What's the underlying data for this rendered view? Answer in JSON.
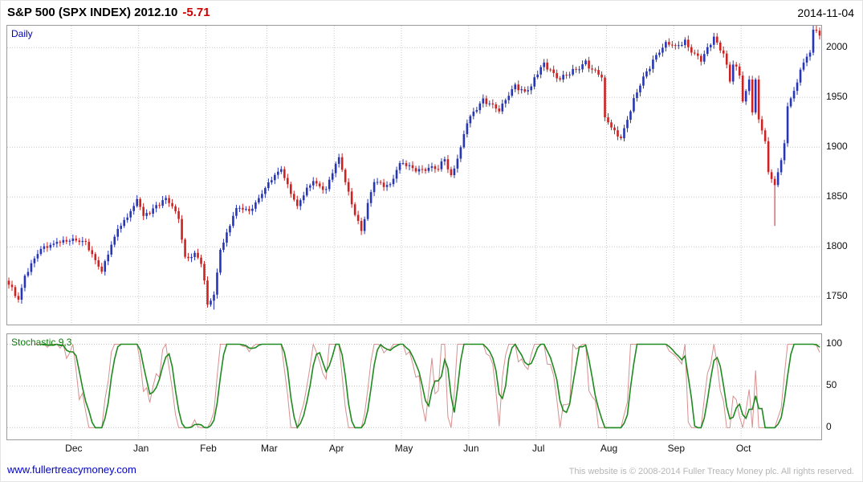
{
  "header": {
    "title": "S&P 500 (SPX INDEX) 2012.10",
    "change": "-5.71",
    "date": "2014-11-04"
  },
  "main_panel": {
    "label": "Daily"
  },
  "stochastic_panel": {
    "label": "Stochastic 9,3"
  },
  "footer": {
    "link": "www.fullertreacymoney.com",
    "copyright": "This website is © 2008-2014 Fuller Treacy Money plc. All rights reserved."
  },
  "colors": {
    "candle_up": "#2636b4",
    "candle_down": "#cc2222",
    "grid": "#c9c9c9",
    "stoch_fast": "#d89090",
    "stoch_slow": "#1f8a1f",
    "daily_label": "#0000bb",
    "stoch_label": "#0d7d0d",
    "change_red": "#cc0000",
    "link": "#0000cc",
    "copyright": "#b5b5b5"
  },
  "chart_data": {
    "type": "candlestick",
    "instrument": "S&P 500 (SPX INDEX)",
    "interval": "Daily",
    "last_price": 2012.1,
    "change": -5.71,
    "as_of_date": "2014-11-04",
    "price_axis": {
      "ticks": [
        1750,
        1800,
        1850,
        1900,
        1950,
        2000
      ],
      "range": [
        1722,
        2022
      ]
    },
    "time_axis": {
      "month_labels": [
        "Dec",
        "Jan",
        "Feb",
        "Mar",
        "Apr",
        "May",
        "Jun",
        "Jul",
        "Aug",
        "Sep",
        "Oct"
      ],
      "month_start_days": [
        20,
        41,
        62,
        81,
        102,
        123,
        144,
        165,
        187,
        208,
        229
      ],
      "total_days": 254
    },
    "price_anchors": [
      [
        0,
        1762
      ],
      [
        3,
        1747
      ],
      [
        5,
        1771
      ],
      [
        10,
        1798
      ],
      [
        15,
        1805
      ],
      [
        19,
        1806
      ],
      [
        24,
        1805
      ],
      [
        29,
        1775
      ],
      [
        34,
        1818
      ],
      [
        39,
        1841
      ],
      [
        40,
        1848
      ],
      [
        42,
        1831
      ],
      [
        46,
        1842
      ],
      [
        49,
        1849
      ],
      [
        53,
        1828
      ],
      [
        55,
        1790
      ],
      [
        58,
        1794
      ],
      [
        60,
        1783
      ],
      [
        62,
        1742
      ],
      [
        64,
        1752
      ],
      [
        66,
        1797
      ],
      [
        71,
        1839
      ],
      [
        75,
        1836
      ],
      [
        80,
        1859
      ],
      [
        85,
        1878
      ],
      [
        90,
        1841
      ],
      [
        95,
        1866
      ],
      [
        99,
        1858
      ],
      [
        103,
        1890
      ],
      [
        105,
        1865
      ],
      [
        110,
        1816
      ],
      [
        114,
        1865
      ],
      [
        119,
        1863
      ],
      [
        122,
        1884
      ],
      [
        124,
        1881
      ],
      [
        129,
        1878
      ],
      [
        134,
        1878
      ],
      [
        136,
        1888
      ],
      [
        138,
        1872
      ],
      [
        141,
        1900
      ],
      [
        143,
        1924
      ],
      [
        148,
        1949
      ],
      [
        151,
        1943
      ],
      [
        153,
        1936
      ],
      [
        158,
        1963
      ],
      [
        161,
        1956
      ],
      [
        163,
        1961
      ],
      [
        165,
        1973
      ],
      [
        167,
        1985
      ],
      [
        169,
        1978
      ],
      [
        172,
        1968
      ],
      [
        175,
        1973
      ],
      [
        177,
        1978
      ],
      [
        180,
        1987
      ],
      [
        182,
        1978
      ],
      [
        185,
        1970
      ],
      [
        186,
        1930
      ],
      [
        187,
        1925
      ],
      [
        191,
        1909
      ],
      [
        194,
        1936
      ],
      [
        196,
        1955
      ],
      [
        198,
        1971
      ],
      [
        201,
        1988
      ],
      [
        204,
        2000
      ],
      [
        206,
        2003
      ],
      [
        208,
        2002
      ],
      [
        211,
        2008
      ],
      [
        213,
        1995
      ],
      [
        216,
        1986
      ],
      [
        220,
        2011
      ],
      [
        223,
        1994
      ],
      [
        225,
        1966
      ],
      [
        226,
        1983
      ],
      [
        228,
        1972
      ],
      [
        229,
        1946
      ],
      [
        231,
        1968
      ],
      [
        232,
        1935
      ],
      [
        233,
        1968
      ],
      [
        234,
        1928
      ],
      [
        236,
        1906
      ],
      [
        237,
        1875
      ],
      [
        239,
        1862
      ],
      [
        241,
        1887
      ],
      [
        242,
        1904
      ],
      [
        243,
        1941
      ],
      [
        246,
        1965
      ],
      [
        248,
        1985
      ],
      [
        250,
        1995
      ],
      [
        251,
        2018
      ],
      [
        252,
        2017
      ],
      [
        253,
        2012.1
      ]
    ],
    "wick_extremes": [
      {
        "day": 64,
        "low": 1737
      },
      {
        "day": 239,
        "low": 1821
      },
      {
        "day": 252,
        "high": 2024
      }
    ],
    "indicator": {
      "name": "Stochastic",
      "params": "9,3",
      "series": [
        "%K",
        "%D"
      ],
      "ticks": [
        0,
        50,
        100
      ],
      "range": [
        -14,
        112
      ]
    }
  }
}
